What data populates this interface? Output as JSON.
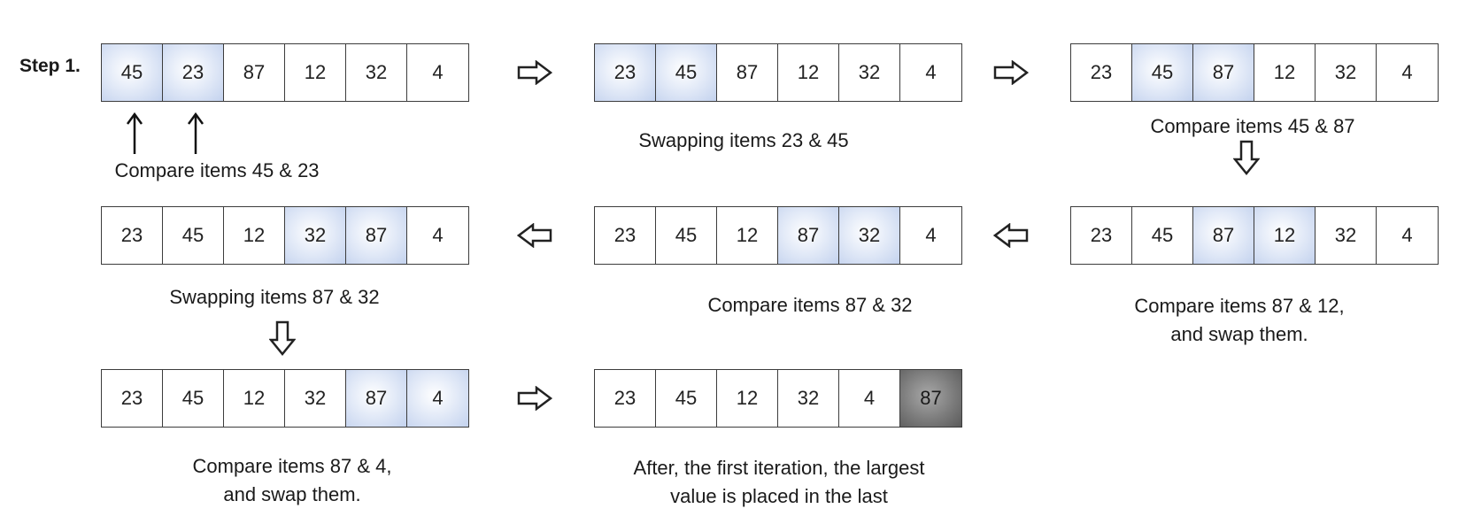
{
  "step_label": "Step 1.",
  "rows": [
    {
      "arrays": [
        {
          "cells": [
            {
              "v": "45",
              "s": "hl"
            },
            {
              "v": "23",
              "s": "hl"
            },
            {
              "v": "87",
              "s": ""
            },
            {
              "v": "12",
              "s": ""
            },
            {
              "v": "32",
              "s": ""
            },
            {
              "v": "4",
              "s": ""
            }
          ]
        },
        {
          "cells": [
            {
              "v": "23",
              "s": "hl"
            },
            {
              "v": "45",
              "s": "hl"
            },
            {
              "v": "87",
              "s": ""
            },
            {
              "v": "12",
              "s": ""
            },
            {
              "v": "32",
              "s": ""
            },
            {
              "v": "4",
              "s": ""
            }
          ]
        },
        {
          "cells": [
            {
              "v": "23",
              "s": ""
            },
            {
              "v": "45",
              "s": "hl"
            },
            {
              "v": "87",
              "s": "hl"
            },
            {
              "v": "12",
              "s": ""
            },
            {
              "v": "32",
              "s": ""
            },
            {
              "v": "4",
              "s": ""
            }
          ]
        }
      ]
    },
    {
      "arrays": [
        {
          "cells": [
            {
              "v": "23",
              "s": ""
            },
            {
              "v": "45",
              "s": ""
            },
            {
              "v": "12",
              "s": ""
            },
            {
              "v": "32",
              "s": "hl"
            },
            {
              "v": "87",
              "s": "hl"
            },
            {
              "v": "4",
              "s": ""
            }
          ]
        },
        {
          "cells": [
            {
              "v": "23",
              "s": ""
            },
            {
              "v": "45",
              "s": ""
            },
            {
              "v": "12",
              "s": ""
            },
            {
              "v": "87",
              "s": "hl"
            },
            {
              "v": "32",
              "s": "hl"
            },
            {
              "v": "4",
              "s": ""
            }
          ]
        },
        {
          "cells": [
            {
              "v": "23",
              "s": ""
            },
            {
              "v": "45",
              "s": ""
            },
            {
              "v": "87",
              "s": "hl"
            },
            {
              "v": "12",
              "s": "hl"
            },
            {
              "v": "32",
              "s": ""
            },
            {
              "v": "4",
              "s": ""
            }
          ]
        }
      ]
    },
    {
      "arrays": [
        {
          "cells": [
            {
              "v": "23",
              "s": ""
            },
            {
              "v": "45",
              "s": ""
            },
            {
              "v": "12",
              "s": ""
            },
            {
              "v": "32",
              "s": ""
            },
            {
              "v": "87",
              "s": "hl"
            },
            {
              "v": "4",
              "s": "hl"
            }
          ]
        },
        {
          "cells": [
            {
              "v": "23",
              "s": ""
            },
            {
              "v": "45",
              "s": ""
            },
            {
              "v": "12",
              "s": ""
            },
            {
              "v": "32",
              "s": ""
            },
            {
              "v": "4",
              "s": ""
            },
            {
              "v": "87",
              "s": "dark"
            }
          ]
        }
      ]
    }
  ],
  "captions": {
    "compare_45_23": [
      "Compare items 45 & 23"
    ],
    "swap_23_45": [
      "Swapping items 23 & 45"
    ],
    "compare_45_87": [
      "Compare items 45 & 87"
    ],
    "swap_87_32": [
      "Swapping items 87 & 32"
    ],
    "compare_87_32": [
      "Compare items 87 & 32"
    ],
    "compare_87_12": [
      "Compare items 87 & 12,",
      "and swap them."
    ],
    "compare_87_4": [
      "Compare items 87 & 4,",
      "and swap them."
    ],
    "final": [
      "After, the first iteration, the largest",
      "value is placed in the last"
    ]
  },
  "colors": {
    "highlight": "#c3d2ee",
    "final_cell": "#7c7c7c",
    "border": "#3c3c3c"
  }
}
